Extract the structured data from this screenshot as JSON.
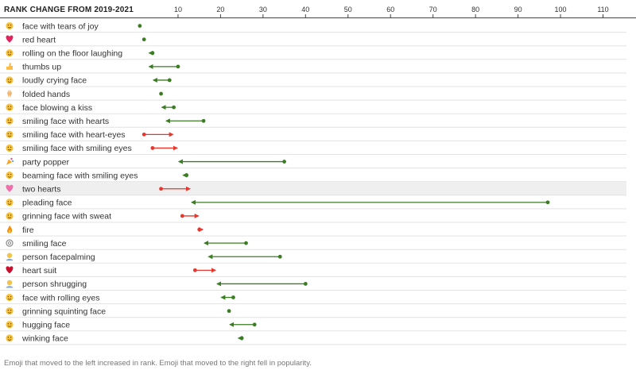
{
  "chart_data": {
    "type": "dot-arrow",
    "title": "RANK CHANGE FROM 2019-2021",
    "x_ticks": [
      10,
      20,
      30,
      40,
      50,
      60,
      70,
      80,
      90,
      100,
      110
    ],
    "xlim": [
      0,
      110
    ],
    "highlight_row": "two hearts",
    "colors": {
      "improved": "#3a7d22",
      "declined": "#e8372c",
      "unchanged": "#3a7d22",
      "highlight": "#efefef"
    },
    "rows": [
      {
        "name": "face with tears of joy",
        "icon": "face-with-tears-of-joy",
        "from": 1,
        "to": 1
      },
      {
        "name": "red heart",
        "icon": "red-heart",
        "from": 2,
        "to": 2
      },
      {
        "name": "rolling on the floor laughing",
        "icon": "rolling-on-the-floor-laughing",
        "from": 4,
        "to": 3
      },
      {
        "name": "thumbs up",
        "icon": "thumbs-up",
        "from": 10,
        "to": 3
      },
      {
        "name": "loudly crying face",
        "icon": "loudly-crying-face",
        "from": 8,
        "to": 4
      },
      {
        "name": "folded hands",
        "icon": "folded-hands",
        "from": 6,
        "to": 6
      },
      {
        "name": "face blowing a kiss",
        "icon": "face-blowing-a-kiss",
        "from": 9,
        "to": 6
      },
      {
        "name": "smiling face with hearts",
        "icon": "smiling-face-with-hearts",
        "from": 16,
        "to": 7
      },
      {
        "name": "smiling face with heart-eyes",
        "icon": "smiling-face-with-heart-eyes",
        "from": 2,
        "to": 9
      },
      {
        "name": "smiling face with smiling eyes",
        "icon": "smiling-face-with-smiling-eyes",
        "from": 4,
        "to": 10
      },
      {
        "name": "party popper",
        "icon": "party-popper",
        "from": 35,
        "to": 10
      },
      {
        "name": "beaming face with smiling eyes",
        "icon": "beaming-face-with-smiling-eyes",
        "from": 12,
        "to": 11
      },
      {
        "name": "two hearts",
        "icon": "two-hearts",
        "from": 6,
        "to": 13
      },
      {
        "name": "pleading face",
        "icon": "pleading-face",
        "from": 97,
        "to": 13
      },
      {
        "name": "grinning face with sweat",
        "icon": "grinning-face-with-sweat",
        "from": 11,
        "to": 15
      },
      {
        "name": "fire",
        "icon": "fire",
        "from": 15,
        "to": 16
      },
      {
        "name": "smiling face",
        "icon": "smiling-face",
        "from": 26,
        "to": 16
      },
      {
        "name": "person facepalming",
        "icon": "person-facepalming",
        "from": 34,
        "to": 17
      },
      {
        "name": "heart suit",
        "icon": "heart-suit",
        "from": 14,
        "to": 19
      },
      {
        "name": "person shrugging",
        "icon": "person-shrugging",
        "from": 40,
        "to": 19
      },
      {
        "name": "face with rolling eyes",
        "icon": "face-with-rolling-eyes",
        "from": 23,
        "to": 20
      },
      {
        "name": "grinning squinting face",
        "icon": "grinning-squinting-face",
        "from": 22,
        "to": 22
      },
      {
        "name": "hugging face",
        "icon": "hugging-face",
        "from": 28,
        "to": 22
      },
      {
        "name": "winking face",
        "icon": "winking-face",
        "from": 25,
        "to": 24
      }
    ]
  },
  "footnote": "Emoji that moved to the left increased in rank. Emoji that moved to the right fell in popularity."
}
